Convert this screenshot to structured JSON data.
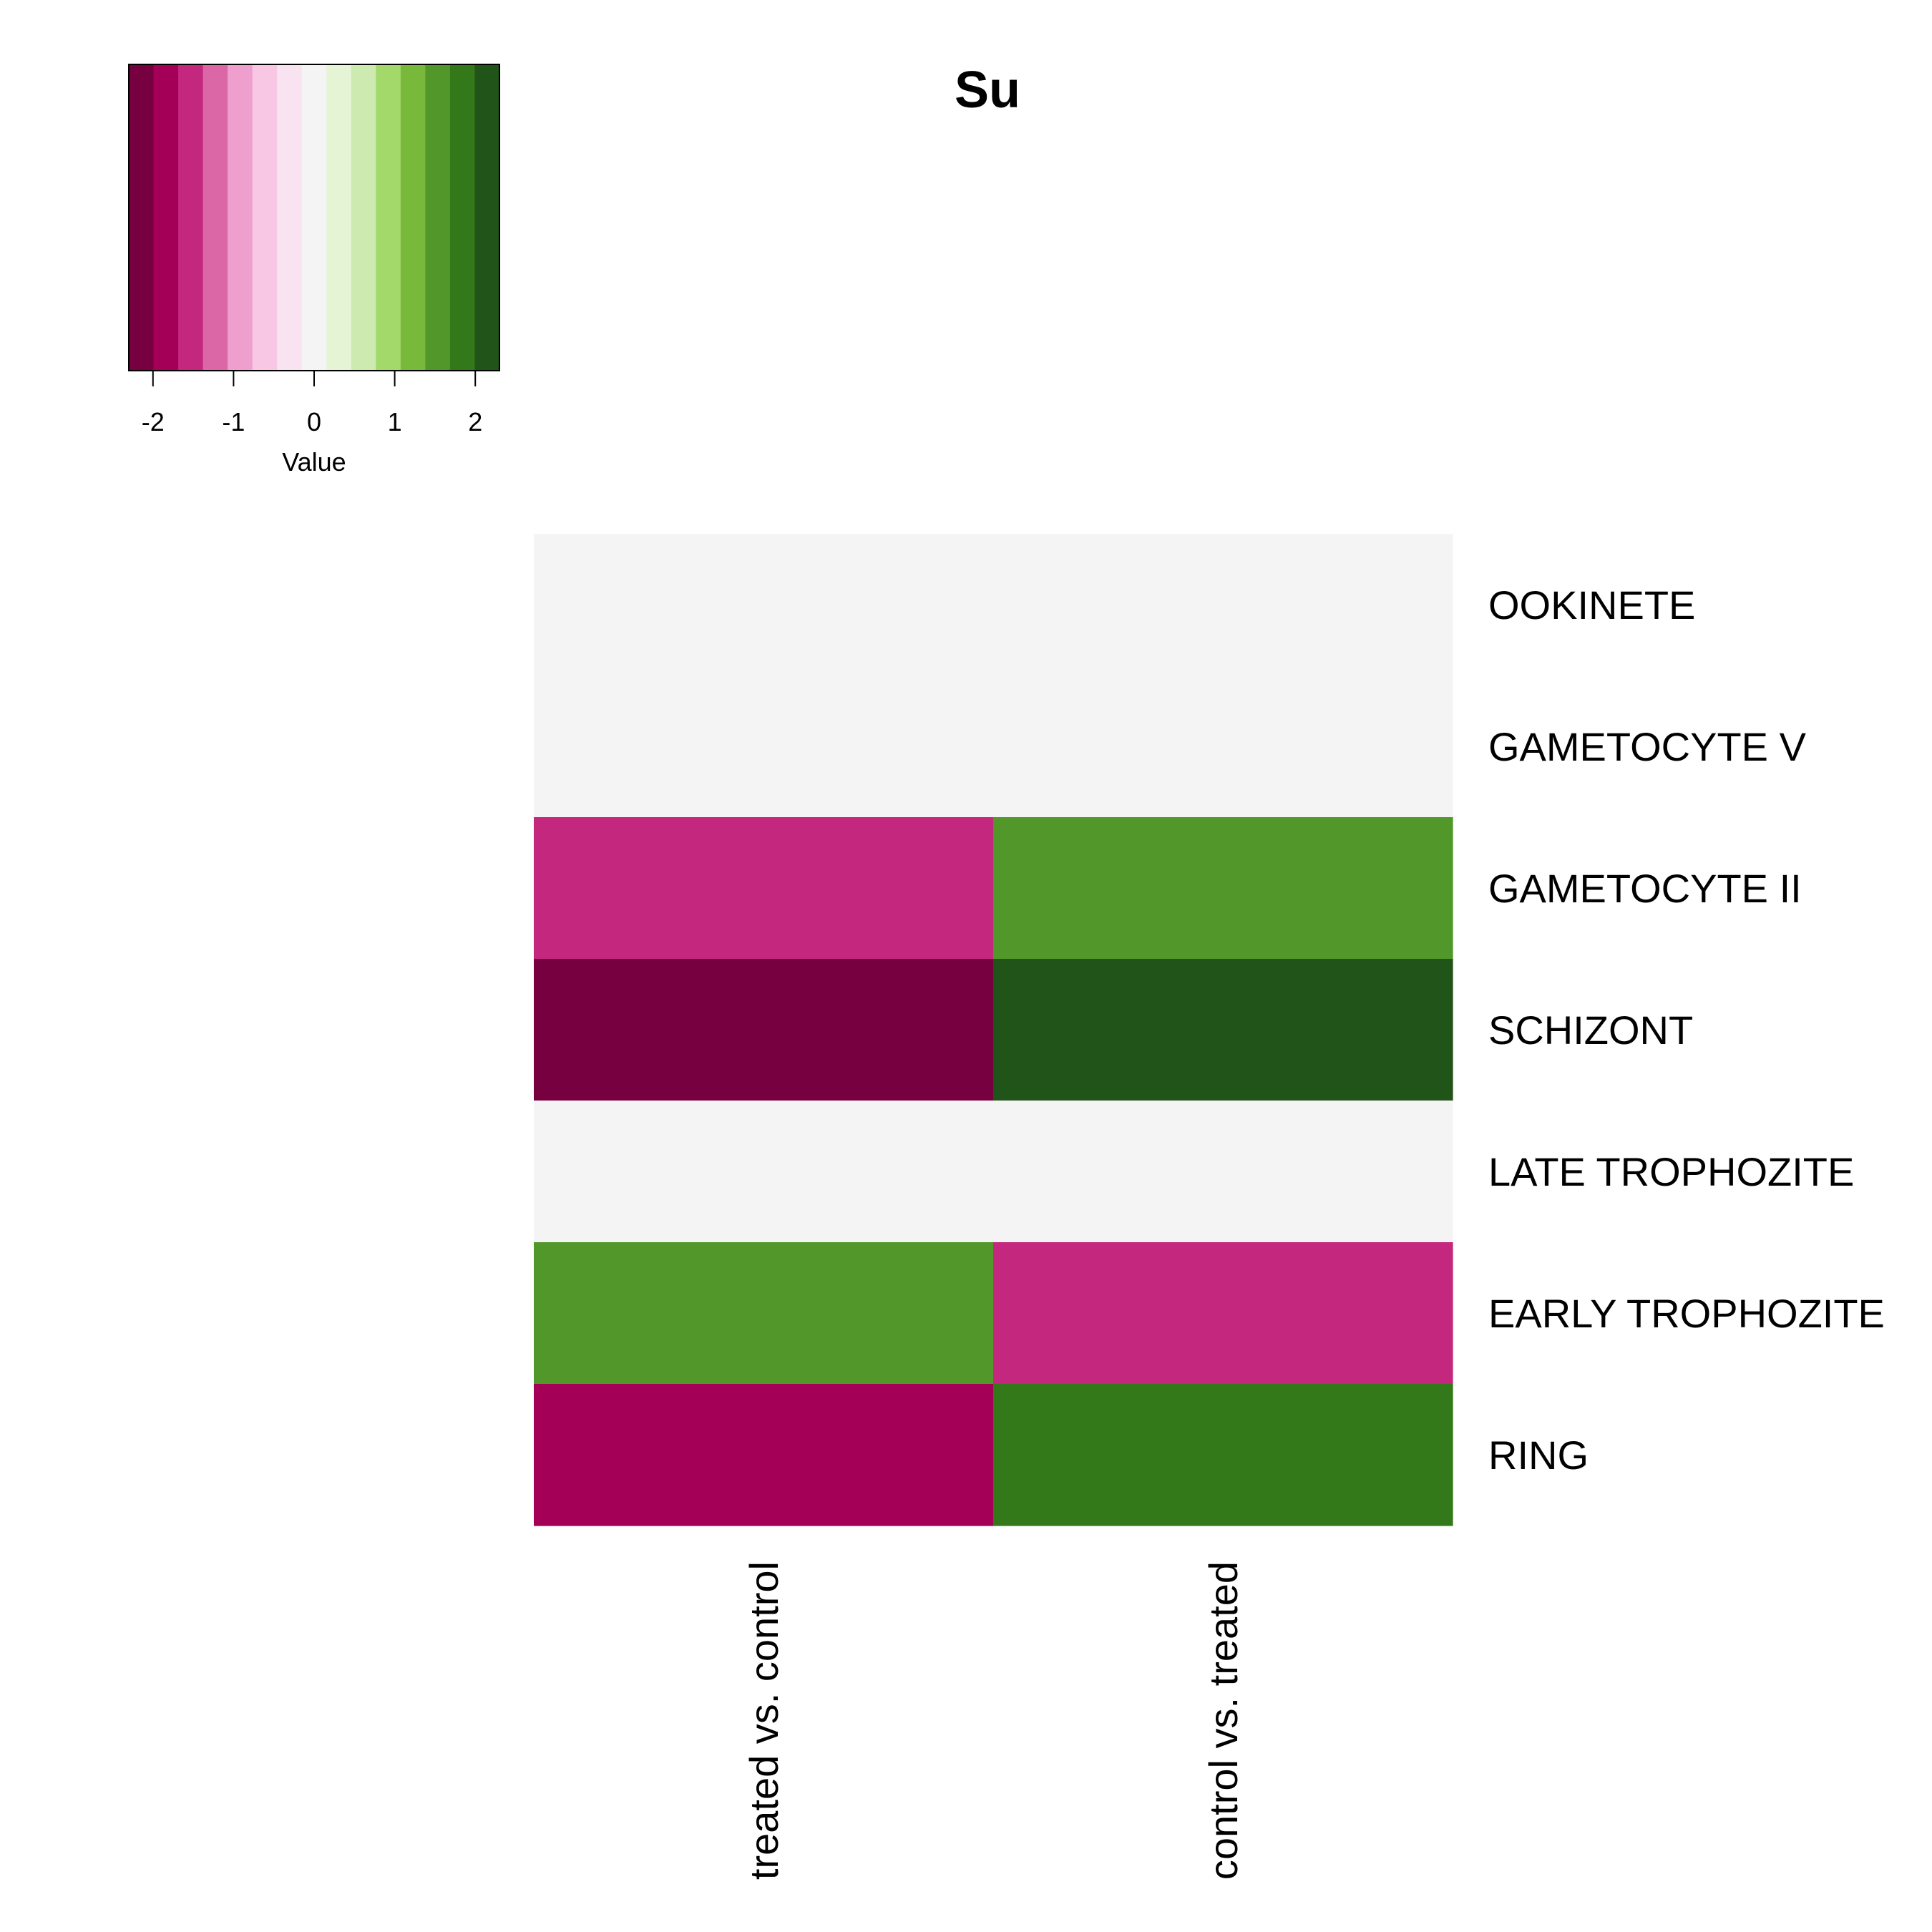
{
  "chart_data": {
    "type": "heatmap",
    "title": "Su",
    "rows": [
      "OOKINETE",
      "GAMETOCYTE V",
      "GAMETOCYTE II",
      "SCHIZONT",
      "LATE TROPHOZITE",
      "EARLY TROPHOZITE",
      "RING"
    ],
    "columns": [
      "treated vs. control",
      "control vs. treated"
    ],
    "values": [
      [
        0,
        0
      ],
      [
        0,
        0
      ],
      [
        -1.6,
        1.6
      ],
      [
        -2.2,
        2.2
      ],
      [
        0,
        0
      ],
      [
        1.6,
        -1.6
      ],
      [
        -1.9,
        1.9
      ]
    ],
    "color_key": {
      "axis_label": "Value",
      "range": [
        -2.3,
        2.3
      ],
      "ticks": [
        -2,
        -1,
        0,
        1,
        2
      ],
      "tick_labels": [
        "-2",
        "-1",
        "0",
        "1",
        "2"
      ],
      "colors": [
        "#770040",
        "#a50057",
        "#c4287e",
        "#db67a6",
        "#ee9fce",
        "#f7c7e3",
        "#fae3f0",
        "#f4f4f4",
        "#e4f4d4",
        "#cdeab0",
        "#a3d86b",
        "#78b83a",
        "#52972a",
        "#347919",
        "#215419"
      ]
    }
  }
}
